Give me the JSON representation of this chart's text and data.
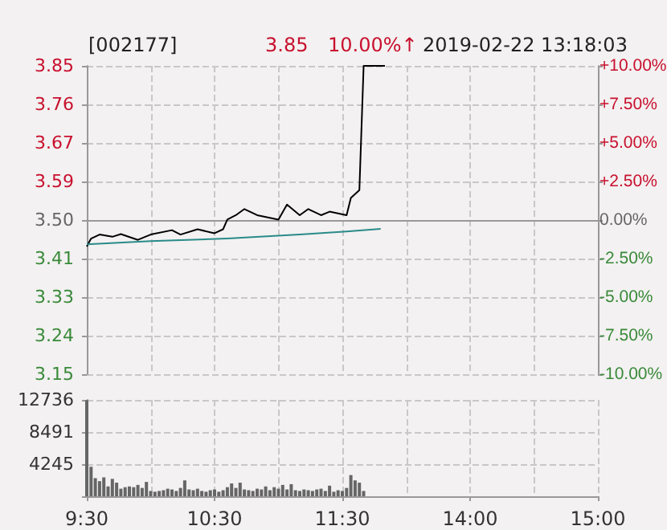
{
  "chart_data": [
    {
      "type": "line",
      "title": "[002177]",
      "annotations": [
        "3.85",
        "10.00%↑",
        "2019-02-22 13:18:03"
      ],
      "categories": [
        null,
        null,
        null,
        null,
        null,
        null,
        null,
        null,
        null,
        null,
        null,
        null,
        null,
        null,
        null,
        null,
        null,
        null,
        null,
        null,
        null,
        null,
        null,
        null,
        null,
        null,
        null,
        null,
        null,
        null,
        null,
        null,
        null,
        null,
        null,
        null,
        null,
        null,
        null,
        null,
        null,
        null,
        null,
        null,
        null,
        null,
        null,
        null,
        null,
        null,
        null,
        null,
        null,
        null,
        null,
        null,
        null,
        null,
        null,
        null,
        null,
        null,
        null,
        null,
        null,
        null,
        null,
        null,
        null,
        null,
        null,
        null,
        null,
        null,
        null,
        null,
        null,
        null,
        null,
        null,
        null,
        null,
        null,
        null,
        null,
        null,
        null,
        null,
        null,
        null,
        null,
        null,
        null,
        null,
        null,
        null,
        null,
        null,
        null,
        null,
        null,
        null,
        null,
        null,
        null,
        null,
        null,
        null,
        null,
        null,
        null,
        null,
        null,
        null,
        null,
        null,
        null,
        null,
        null,
        null,
        null
      ],
      "ylim": [
        3.15,
        3.85
      ],
      "yticks": [
        {
          "value": 3.15,
          "label": "3.15"
        },
        {
          "value": 3.2375,
          "label": "3.24"
        },
        {
          "value": 3.325,
          "label": "3.33"
        },
        {
          "value": 3.4125,
          "label": "3.41"
        },
        {
          "value": 3.5,
          "label": "3.50"
        },
        {
          "value": 3.5875,
          "label": "3.59"
        },
        {
          "value": 3.675,
          "label": "3.67"
        },
        {
          "value": 3.7625,
          "label": "3.76"
        },
        {
          "value": 3.85,
          "label": "3.85"
        }
      ],
      "y2lim": [
        -10,
        10
      ],
      "y2ticks": [
        {
          "value": -10,
          "label": "-10.00%"
        },
        {
          "value": -7.5,
          "label": "-7.50%"
        },
        {
          "value": -5,
          "label": "-5.00%"
        },
        {
          "value": -2.5,
          "label": "-2.50%"
        },
        {
          "value": 0,
          "label": "0.00%"
        },
        {
          "value": 2.5,
          "label": "+2.50%"
        },
        {
          "value": 5,
          "label": "+5.00%"
        },
        {
          "value": 7.5,
          "label": "+7.50%"
        },
        {
          "value": 10,
          "label": "+10.00%"
        }
      ],
      "grid": true,
      "series": [
        {
          "color": "#000000",
          "values": [
            3.44,
            3.458,
            null,
            3.467,
            null,
            null,
            3.462,
            null,
            3.468,
            null,
            null,
            null,
            3.455,
            null,
            null,
            3.467,
            null,
            null,
            null,
            null,
            3.477,
            null,
            3.467,
            null,
            null,
            null,
            3.479,
            null,
            null,
            null,
            3.47,
            null,
            3.479,
            3.501,
            null,
            3.511,
            null,
            3.525,
            null,
            null,
            3.511,
            null,
            null,
            null,
            null,
            3.501,
            null,
            3.535,
            null,
            null,
            3.511,
            null,
            3.525,
            null,
            null,
            3.511,
            null,
            3.519,
            null,
            null,
            null,
            3.511,
            3.55,
            null,
            3.568,
            3.85,
            null,
            null,
            null,
            null,
            3.85,
            null,
            null,
            null,
            null,
            null,
            null,
            null,
            null,
            null,
            null,
            null,
            null,
            null,
            null,
            null,
            null,
            null,
            null,
            null,
            null,
            null,
            null,
            null,
            null,
            null,
            null,
            null,
            null,
            null,
            null,
            null,
            null,
            null,
            null,
            null,
            null,
            null,
            null,
            null,
            null,
            null,
            null,
            null,
            null,
            null,
            null,
            null,
            null,
            null,
            null
          ]
        },
        {
          "color": "#2a8a8a",
          "values": [
            3.445,
            null,
            null,
            null,
            null,
            null,
            null,
            null,
            null,
            null,
            null,
            null,
            null,
            null,
            null,
            3.452,
            null,
            null,
            null,
            null,
            null,
            null,
            null,
            null,
            null,
            null,
            null,
            null,
            null,
            null,
            null,
            null,
            null,
            3.458,
            null,
            null,
            null,
            null,
            null,
            null,
            null,
            null,
            null,
            null,
            null,
            null,
            null,
            null,
            null,
            null,
            3.467,
            null,
            null,
            null,
            null,
            null,
            null,
            null,
            null,
            null,
            null,
            3.474,
            null,
            null,
            null,
            null,
            null,
            null,
            null,
            3.48,
            null,
            null,
            null,
            null,
            null,
            null,
            null,
            null,
            null,
            null,
            null,
            null,
            null,
            null,
            null,
            null,
            null,
            null,
            null,
            null,
            null,
            null,
            null,
            null,
            null,
            null,
            null,
            null,
            null,
            null,
            null,
            null,
            null,
            null,
            null,
            null,
            null,
            null,
            null,
            null,
            null,
            null,
            null,
            null,
            null,
            null,
            null,
            null,
            null,
            null,
            null
          ]
        }
      ]
    },
    {
      "type": "bar",
      "categories": [
        "9:30",
        null,
        null,
        null,
        null,
        null,
        null,
        null,
        null,
        null,
        null,
        null,
        null,
        null,
        null,
        null,
        null,
        null,
        null,
        null,
        null,
        null,
        null,
        null,
        null,
        null,
        null,
        null,
        null,
        null,
        "10:30",
        null,
        null,
        null,
        null,
        null,
        null,
        null,
        null,
        null,
        null,
        null,
        null,
        null,
        null,
        null,
        null,
        null,
        null,
        null,
        null,
        null,
        null,
        null,
        null,
        null,
        null,
        null,
        null,
        null,
        "11:30",
        null,
        null,
        null,
        null,
        null,
        null,
        null,
        null,
        null,
        null,
        null,
        null,
        null,
        null,
        null,
        null,
        null,
        null,
        null,
        null,
        null,
        null,
        null,
        null,
        null,
        null,
        null,
        null,
        null,
        "14:00",
        null,
        null,
        null,
        null,
        null,
        null,
        null,
        null,
        null,
        null,
        null,
        null,
        null,
        null,
        null,
        null,
        null,
        null,
        null,
        null,
        null,
        null,
        null,
        null,
        null,
        null,
        null,
        null,
        null,
        "15:00"
      ],
      "ylim": [
        0,
        12736
      ],
      "yticks": [
        {
          "value": 0,
          "label": null
        },
        4245,
        8491,
        12736
      ],
      "grid": true,
      "series": [
        {
          "color": "#666666",
          "values": [
            12700,
            3900,
            2400,
            2000,
            2500,
            1300,
            2300,
            1800,
            1000,
            1200,
            1300,
            1200,
            1500,
            1100,
            1900,
            700,
            600,
            700,
            800,
            1000,
            900,
            700,
            1100,
            2100,
            900,
            800,
            1000,
            700,
            600,
            800,
            900,
            600,
            800,
            1200,
            1700,
            1100,
            1800,
            900,
            800,
            700,
            1000,
            900,
            1300,
            800,
            1200,
            1000,
            1500,
            900,
            1600,
            800,
            700,
            900,
            800,
            700,
            900,
            1000,
            700,
            1400,
            600,
            800,
            700,
            1100,
            2800,
            2100,
            1800,
            700,
            null,
            null,
            null,
            null,
            null,
            null,
            null,
            null,
            null,
            null,
            null,
            null,
            null,
            null,
            null,
            null,
            null,
            null,
            null,
            null,
            null,
            null,
            null,
            null,
            null,
            null,
            null,
            null,
            null,
            null,
            null,
            null,
            null,
            null,
            null,
            null,
            null,
            null,
            null,
            null,
            null,
            null,
            null,
            null,
            null,
            null,
            null,
            null,
            null,
            null,
            null,
            null,
            null,
            null,
            null
          ]
        }
      ]
    }
  ]
}
